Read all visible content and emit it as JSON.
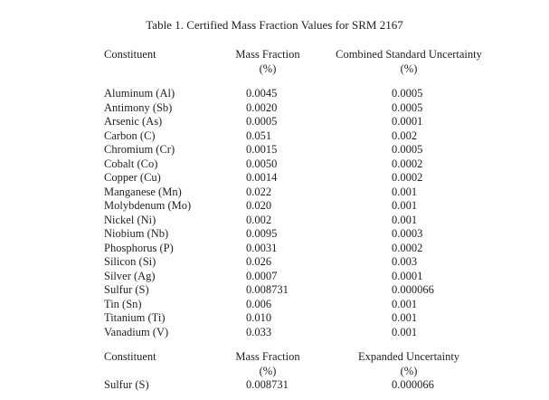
{
  "page": {
    "title": "Table 1. Certified Mass Fraction Values for SRM 2167"
  },
  "table1": {
    "headers": {
      "constituent": "Constituent",
      "mass_fraction": "Mass Fraction",
      "mass_fraction_unit": "(%)",
      "uncertainty": "Combined Standard Uncertainty",
      "uncertainty_unit": "(%)"
    },
    "rows": [
      {
        "constituent": "Aluminum (Al)",
        "mass_fraction": "0.0045",
        "uncertainty": "0.0005"
      },
      {
        "constituent": "Antimony (Sb)",
        "mass_fraction": "0.0020",
        "uncertainty": "0.0005"
      },
      {
        "constituent": "Arsenic (As)",
        "mass_fraction": "0.0005",
        "uncertainty": "0.0001"
      },
      {
        "constituent": "Carbon (C)",
        "mass_fraction": "0.051",
        "uncertainty": "0.002"
      },
      {
        "constituent": "Chromium (Cr)",
        "mass_fraction": "0.0015",
        "uncertainty": "0.0005"
      },
      {
        "constituent": "Cobalt (Co)",
        "mass_fraction": "0.0050",
        "uncertainty": "0.0002"
      },
      {
        "constituent": "Copper (Cu)",
        "mass_fraction": "0.0014",
        "uncertainty": "0.0002"
      },
      {
        "constituent": "Manganese (Mn)",
        "mass_fraction": "0.022",
        "uncertainty": "0.001"
      },
      {
        "constituent": "Molybdenum (Mo)",
        "mass_fraction": "0.020",
        "uncertainty": "0.001"
      },
      {
        "constituent": "Nickel (Ni)",
        "mass_fraction": "0.002",
        "uncertainty": "0.001"
      },
      {
        "constituent": "Niobium (Nb)",
        "mass_fraction": "0.0095",
        "uncertainty": "0.0003"
      },
      {
        "constituent": "Phosphorus (P)",
        "mass_fraction": "0.0031",
        "uncertainty": "0.0002"
      },
      {
        "constituent": "Silicon (Si)",
        "mass_fraction": "0.026",
        "uncertainty": "0.003"
      },
      {
        "constituent": "Silver (Ag)",
        "mass_fraction": "0.0007",
        "uncertainty": "0.0001"
      },
      {
        "constituent": "Sulfur (S)",
        "mass_fraction": "0.008731",
        "uncertainty": "0.000066"
      },
      {
        "constituent": "Tin (Sn)",
        "mass_fraction": "0.006",
        "uncertainty": "0.001"
      },
      {
        "constituent": "Titanium (Ti)",
        "mass_fraction": "0.010",
        "uncertainty": "0.001"
      },
      {
        "constituent": "Vanadium (V)",
        "mass_fraction": "0.033",
        "uncertainty": "0.001"
      }
    ]
  },
  "table2": {
    "headers": {
      "constituent": "Constituent",
      "mass_fraction": "Mass Fraction",
      "mass_fraction_unit": "(%)",
      "uncertainty": "Expanded Uncertainty",
      "uncertainty_unit": "(%)"
    },
    "rows": [
      {
        "constituent": "Sulfur (S)",
        "mass_fraction": "0.008731",
        "uncertainty": "0.000066"
      }
    ]
  },
  "colors": {
    "background": "#ffffff",
    "text": "#1f1f1f"
  }
}
